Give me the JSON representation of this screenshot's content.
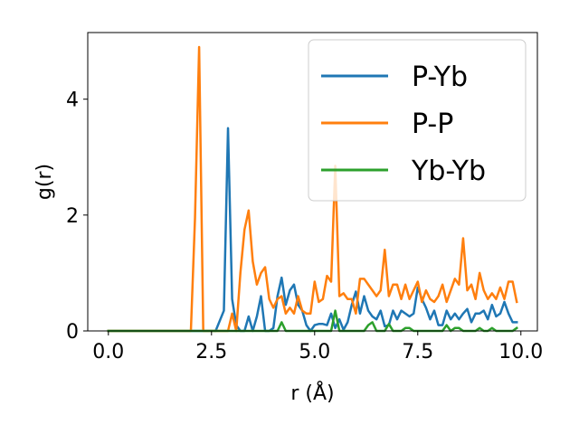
{
  "chart_data": {
    "type": "line",
    "title": "",
    "xlabel": "r (Å)",
    "ylabel": "g(r)",
    "xlim": [
      -0.5,
      10.4
    ],
    "ylim": [
      0,
      5.15
    ],
    "xticks": [
      0.0,
      2.5,
      5.0,
      7.5,
      10.0
    ],
    "xtick_labels": [
      "0.0",
      "2.5",
      "5.0",
      "7.5",
      "10.0"
    ],
    "yticks": [
      0,
      2,
      4
    ],
    "ytick_labels": [
      "0",
      "2",
      "4"
    ],
    "grid": false,
    "legend_position": "top-right",
    "series": [
      {
        "name": "P-Yb",
        "color": "#1f77b4",
        "x": [
          0.0,
          2.6,
          2.8,
          2.9,
          3.0,
          3.1,
          3.2,
          3.3,
          3.4,
          3.5,
          3.6,
          3.7,
          3.8,
          3.9,
          4.0,
          4.1,
          4.2,
          4.3,
          4.4,
          4.5,
          4.6,
          4.7,
          4.8,
          4.9,
          5.0,
          5.1,
          5.2,
          5.3,
          5.4,
          5.5,
          5.6,
          5.7,
          5.8,
          5.9,
          6.0,
          6.1,
          6.2,
          6.3,
          6.4,
          6.5,
          6.6,
          6.7,
          6.8,
          6.9,
          7.0,
          7.1,
          7.2,
          7.3,
          7.4,
          7.5,
          7.6,
          7.7,
          7.8,
          7.9,
          8.0,
          8.1,
          8.2,
          8.3,
          8.4,
          8.5,
          8.6,
          8.7,
          8.8,
          8.9,
          9.0,
          9.1,
          9.2,
          9.3,
          9.4,
          9.5,
          9.6,
          9.7,
          9.8,
          9.9
        ],
        "y": [
          0.0,
          0.0,
          0.35,
          3.5,
          0.55,
          0.1,
          0.0,
          0.0,
          0.25,
          0.0,
          0.25,
          0.6,
          0.0,
          0.0,
          0.05,
          0.6,
          0.92,
          0.45,
          0.7,
          0.8,
          0.45,
          0.35,
          0.1,
          0.0,
          0.1,
          0.12,
          0.12,
          0.1,
          0.3,
          0.05,
          0.2,
          0.02,
          0.15,
          0.45,
          0.68,
          0.3,
          0.6,
          0.35,
          0.25,
          0.2,
          0.35,
          0.08,
          0.1,
          0.35,
          0.2,
          0.35,
          0.3,
          0.25,
          0.3,
          0.75,
          0.55,
          0.4,
          0.2,
          0.35,
          0.1,
          0.1,
          0.35,
          0.2,
          0.3,
          0.2,
          0.3,
          0.38,
          0.15,
          0.3,
          0.3,
          0.35,
          0.2,
          0.45,
          0.25,
          0.3,
          0.5,
          0.3,
          0.15,
          0.15
        ]
      },
      {
        "name": "P-P",
        "color": "#ff7f0e",
        "x": [
          0.0,
          2.0,
          2.1,
          2.2,
          2.3,
          2.8,
          2.9,
          3.0,
          3.1,
          3.2,
          3.3,
          3.4,
          3.5,
          3.6,
          3.7,
          3.8,
          3.9,
          4.0,
          4.1,
          4.2,
          4.3,
          4.4,
          4.5,
          4.6,
          4.7,
          4.8,
          4.9,
          5.0,
          5.1,
          5.2,
          5.3,
          5.4,
          5.5,
          5.6,
          5.7,
          5.8,
          5.9,
          6.0,
          6.1,
          6.2,
          6.3,
          6.4,
          6.5,
          6.6,
          6.7,
          6.8,
          6.9,
          7.0,
          7.1,
          7.2,
          7.3,
          7.4,
          7.5,
          7.6,
          7.7,
          7.8,
          7.9,
          8.0,
          8.1,
          8.2,
          8.3,
          8.4,
          8.5,
          8.6,
          8.7,
          8.8,
          8.9,
          9.0,
          9.1,
          9.2,
          9.3,
          9.4,
          9.5,
          9.6,
          9.7,
          9.8,
          9.9
        ],
        "y": [
          0.0,
          0.0,
          1.95,
          4.9,
          0.0,
          0.0,
          0.0,
          0.3,
          0.0,
          1.0,
          1.75,
          2.08,
          1.2,
          0.8,
          1.0,
          1.1,
          0.55,
          0.4,
          0.55,
          0.6,
          0.3,
          0.4,
          0.3,
          0.6,
          0.35,
          0.3,
          0.3,
          0.85,
          0.5,
          0.55,
          0.95,
          0.85,
          2.85,
          0.6,
          0.65,
          0.55,
          0.55,
          0.3,
          0.9,
          0.9,
          0.8,
          0.7,
          0.6,
          0.7,
          1.4,
          0.6,
          0.8,
          0.8,
          0.55,
          0.8,
          0.55,
          0.7,
          0.85,
          0.5,
          0.7,
          0.55,
          0.5,
          0.6,
          0.8,
          0.5,
          0.7,
          0.9,
          0.8,
          1.6,
          0.7,
          0.8,
          0.55,
          1.0,
          0.7,
          0.55,
          0.65,
          0.55,
          0.75,
          0.55,
          0.85,
          0.85,
          0.5
        ]
      },
      {
        "name": "Yb-Yb",
        "color": "#2ca02c",
        "x": [
          0.0,
          4.0,
          4.1,
          4.2,
          4.3,
          5.3,
          5.4,
          5.5,
          5.6,
          6.0,
          6.1,
          6.2,
          6.3,
          6.4,
          6.5,
          6.6,
          6.7,
          6.8,
          6.9,
          7.0,
          7.1,
          7.2,
          7.3,
          7.4,
          7.5,
          7.6,
          7.7,
          7.8,
          7.9,
          8.0,
          8.1,
          8.2,
          8.3,
          8.4,
          8.5,
          8.6,
          8.7,
          8.8,
          8.9,
          9.0,
          9.1,
          9.2,
          9.3,
          9.4,
          9.5,
          9.6,
          9.7,
          9.8,
          9.9
        ],
        "y": [
          0.0,
          0.0,
          0.0,
          0.15,
          0.0,
          0.0,
          0.0,
          0.35,
          0.0,
          0.0,
          0.0,
          0.0,
          0.1,
          0.15,
          0.0,
          0.0,
          0.0,
          0.12,
          0.0,
          0.0,
          0.0,
          0.05,
          0.05,
          0.0,
          0.0,
          0.0,
          0.0,
          0.0,
          0.0,
          0.0,
          0.0,
          0.1,
          0.0,
          0.05,
          0.05,
          0.0,
          0.0,
          0.0,
          0.0,
          0.05,
          0.0,
          0.0,
          0.05,
          0.0,
          0.0,
          0.0,
          0.0,
          0.0,
          0.05
        ]
      }
    ]
  }
}
